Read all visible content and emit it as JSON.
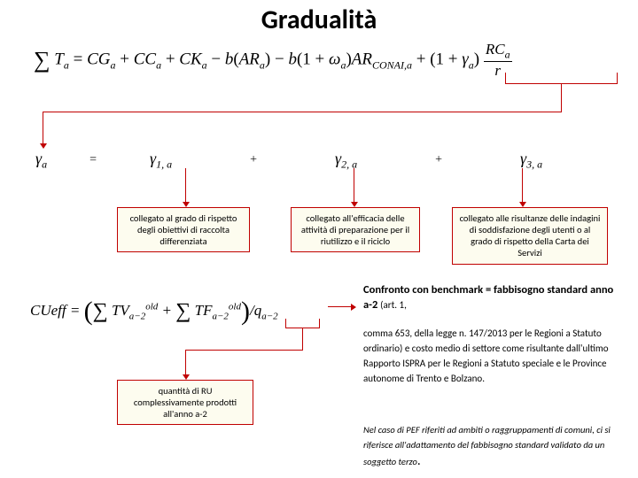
{
  "title": "Gradualità",
  "formula_main_html": "<span class='sigma'>∑</span> T<span class='sub'>a</span> <span class='norm'>=</span> CG<span class='sub'>a</span> <span class='norm'>+</span> CC<span class='sub'>a</span> <span class='norm'>+</span> CK<span class='sub'>a</span> <span class='norm'>−</span> b<span class='norm'>(</span>AR<span class='sub'>a</span><span class='norm'>)</span> <span class='norm'>−</span> b<span class='norm'>(1 +</span> ω<span class='sub'>a</span><span class='norm'>)</span>AR<span class='sub'>CONAI,a</span> <span class='norm'>+ (1 +</span> γ<span class='sub'>a</span><span class='norm'>)</span> <span class='frac'><span class='num'>RC<span class='sub'>a</span></span><span class='den'>r</span></span>",
  "gamma_a": "γ<span class='gammasub'>a</span>",
  "eq": "=",
  "plus": "+",
  "gamma1": "γ<span class='gammasub'>1, a</span>",
  "gamma2": "γ<span class='gammasub'>2, a</span>",
  "gamma3": "γ<span class='gammasub'>3, a</span>",
  "callouts": {
    "c1": "collegato al grado di rispetto degli obiettivi di raccolta differenziata",
    "c2": "collegato all'efficacia delle attività di preparazione per il riutilizzo e il riciclo",
    "c3": "collegato alle risultanze delle indagini di soddisfazione degli utenti o al grado di rispetto della Carta dei Servizi",
    "c4": "quantità di RU complessivamente prodotti all'anno a-2"
  },
  "formula_cu_html": "CUeff <span class='norm'>=</span> <span class='bigparen'>(</span><span class='bigsigma'>∑</span> TV<span class='sub'>a−2</span><span class='sup'>old</span> <span class='norm'>+</span> <span class='bigsigma'>∑</span> TF<span class='sub'>a−2</span><span class='sup'>old</span><span class='bigparen'>)</span><span class='norm'>/</span>q<span class='sub'>a−2</span>",
  "text": {
    "t1_bold": "Confronto con benchmark = fabbisogno standard anno a-2 ",
    "t1_small": "(art. 1,",
    "t2": "comma 653, della legge n. 147/2013 per le Regioni a Statuto ordinario) e costo medio di settore come risultante dall'ultimo Rapporto ISPRA per le Regioni a Statuto speciale e le Province autonome di Trento e Bolzano.",
    "note": "Nel caso di PEF riferiti ad ambiti o raggruppamenti di comuni, ci si riferisce all'adattamento del fabbisogno standard validato da un soggetto terzo"
  },
  "colors": {
    "accent": "#c00000",
    "callout_bg": "#fdfcef"
  }
}
